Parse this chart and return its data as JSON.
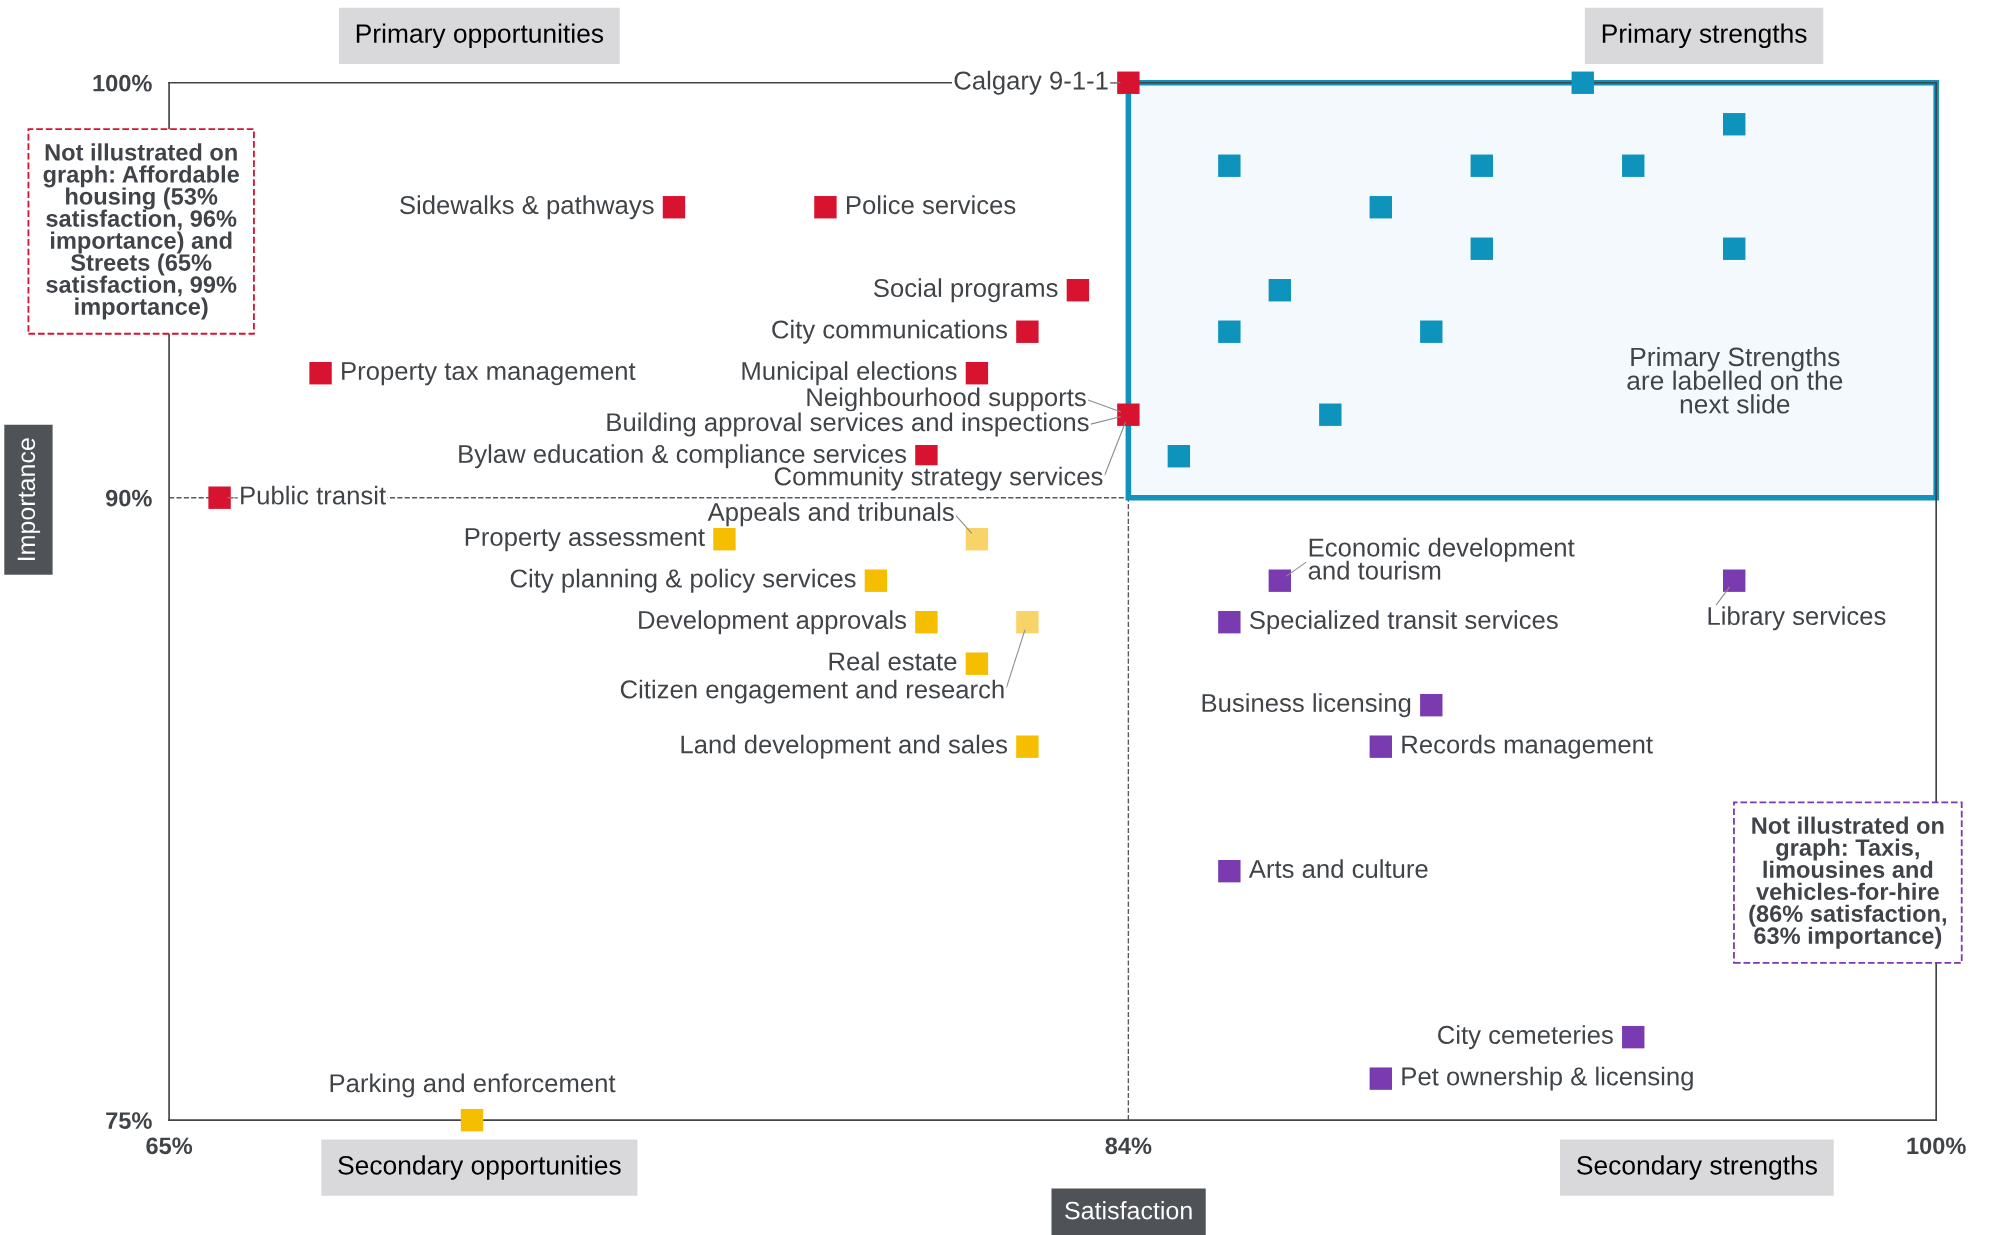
{
  "chart_data": {
    "type": "scatter",
    "marker": "square",
    "grid": false,
    "legend": false,
    "xlabel": "Satisfaction",
    "ylabel": "Importance",
    "xlim": [
      65,
      100
    ],
    "ylim": [
      75,
      100
    ],
    "xticks": [
      {
        "value": 65,
        "label": "65%"
      },
      {
        "value": 84,
        "label": "84%"
      },
      {
        "value": 100,
        "label": "100%"
      }
    ],
    "yticks": [
      {
        "value": 75,
        "label": "75%"
      },
      {
        "value": 90,
        "label": "90%"
      },
      {
        "value": 100,
        "label": "100%"
      }
    ],
    "ref_lines": [
      {
        "axis": "x",
        "value": 84,
        "line_style": "dashed",
        "color": "#555a60"
      },
      {
        "axis": "y",
        "value": 90,
        "line_style": "dashed",
        "color": "#555a60"
      }
    ],
    "bands": [
      {
        "axis": "y",
        "from": 90,
        "to": 100,
        "color": "#1192bd"
      }
    ],
    "series": [
      {
        "color": "#0e93bd",
        "x": [
          93,
          96,
          86,
          91,
          94,
          89,
          91,
          96,
          87,
          86,
          90,
          88,
          85
        ],
        "values": [
          100,
          99,
          98,
          98,
          98,
          97,
          96,
          96,
          95,
          94,
          94,
          92,
          91
        ]
      },
      {
        "color": "#d7132f",
        "x": [
          84,
          75,
          78,
          83,
          82,
          68,
          81,
          84,
          80,
          66
        ],
        "values": [
          100,
          97,
          97,
          95,
          94,
          93,
          93,
          92,
          91,
          90
        ]
      },
      {
        "color": "#f5be00",
        "x": [
          76,
          79,
          80,
          81,
          82,
          71
        ],
        "values": [
          89,
          88,
          87,
          86,
          84,
          75
        ]
      },
      {
        "color": "#f8d468",
        "x": [
          81,
          82
        ],
        "values": [
          89,
          87
        ]
      },
      {
        "color": "#7a3bb0",
        "x": [
          87,
          96,
          86,
          90,
          89,
          86,
          94,
          89
        ],
        "values": [
          88,
          88,
          87,
          85,
          84,
          81,
          77,
          76
        ]
      }
    ],
    "annotations": [
      {
        "text": "Calgary 9-1-1",
        "x": 84,
        "y": 100
      },
      {
        "text": "Sidewalks & pathways",
        "x": 75,
        "y": 97
      },
      {
        "text": "Police services",
        "x": 78,
        "y": 97
      },
      {
        "text": "Social programs",
        "x": 83,
        "y": 95
      },
      {
        "text": "City communications",
        "x": 82,
        "y": 94
      },
      {
        "text": "Property tax management",
        "x": 68,
        "y": 93
      },
      {
        "text": "Municipal elections",
        "x": 81,
        "y": 93
      },
      {
        "text": "Neighbourhood supports",
        "x": 84,
        "y": 92
      },
      {
        "text": "Building approval services and inspections",
        "x": 84,
        "y": 92
      },
      {
        "text": "Bylaw education & compliance services",
        "x": 80,
        "y": 91
      },
      {
        "text": "Community strategy services",
        "x": 84,
        "y": 92
      },
      {
        "text": "Public transit",
        "x": 66,
        "y": 90
      },
      {
        "text": "Appeals and tribunals",
        "x": 81,
        "y": 89
      },
      {
        "text": "Property assessment",
        "x": 76,
        "y": 89
      },
      {
        "text": "City planning & policy services",
        "x": 79,
        "y": 88
      },
      {
        "text": "Development approvals",
        "x": 80,
        "y": 87
      },
      {
        "text": "Real estate",
        "x": 81,
        "y": 86
      },
      {
        "text": "Citizen engagement and research",
        "x": 82,
        "y": 87
      },
      {
        "text": "Land development and sales",
        "x": 82,
        "y": 84
      },
      {
        "text": "Parking and enforcement",
        "x": 71,
        "y": 75
      },
      {
        "text": "Economic development\nand tourism",
        "x": 87,
        "y": 88
      },
      {
        "text": "Library services",
        "x": 96,
        "y": 88
      },
      {
        "text": "Specialized transit services",
        "x": 86,
        "y": 87
      },
      {
        "text": "Business licensing",
        "x": 90,
        "y": 85
      },
      {
        "text": "Records management",
        "x": 89,
        "y": 84
      },
      {
        "text": "Arts and culture",
        "x": 86,
        "y": 81
      },
      {
        "text": "City cemeteries",
        "x": 94,
        "y": 77
      },
      {
        "text": "Pet ownership & licensing",
        "x": 89,
        "y": 76
      },
      "Primary opportunities",
      "Primary strengths",
      "Secondary opportunities",
      "Secondary strengths",
      "Not illustrated on\ngraph: Affordable\nhousing (53%\nsatisfaction, 96%\nimportance) and\nStreets (65%\nsatisfaction, 99%\nimportance)",
      "Not illustrated on\ngraph: Taxis,\nlimousines and\nvehicles-for-hire\n(86% satisfaction,\n63% importance)",
      "Primary Strengths\nare labelled on the\nnext slide"
    ]
  }
}
